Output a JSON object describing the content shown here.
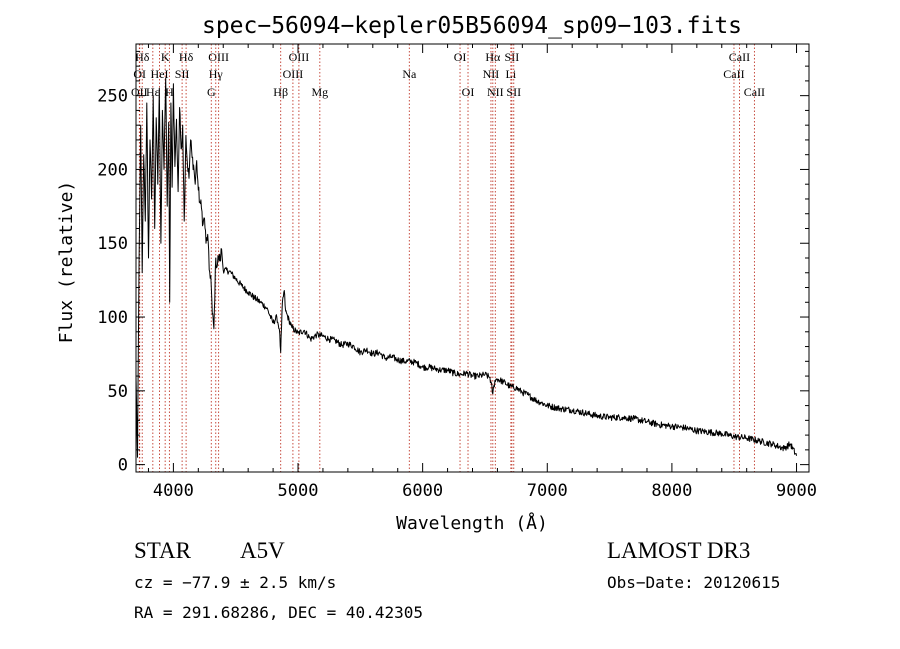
{
  "chart_data": {
    "type": "line",
    "title": "spec−56094−kepler05B56094_sp09−103.fits",
    "xlabel": "Wavelength (Å)",
    "ylabel": "Flux (relative)",
    "xlim": [
      3700,
      9100
    ],
    "ylim": [
      -5,
      285
    ],
    "xticks": [
      4000,
      5000,
      6000,
      7000,
      8000,
      9000
    ],
    "yticks": [
      0,
      50,
      100,
      150,
      200,
      250
    ],
    "xtick_labels": [
      "4000",
      "5000",
      "6000",
      "7000",
      "8000",
      "9000"
    ],
    "ytick_labels": [
      "0",
      "50",
      "100",
      "150",
      "200",
      "250"
    ],
    "series": [
      {
        "name": "flux",
        "x": [
          3700,
          3712,
          3725,
          3738,
          3750,
          3762,
          3775,
          3787,
          3800,
          3812,
          3825,
          3838,
          3850,
          3862,
          3875,
          3887,
          3900,
          3912,
          3925,
          3938,
          3950,
          3962,
          3970,
          3980,
          3990,
          4000,
          4012,
          4025,
          4038,
          4050,
          4062,
          4075,
          4087,
          4100,
          4112,
          4125,
          4138,
          4150,
          4162,
          4175,
          4187,
          4200,
          4212,
          4225,
          4238,
          4250,
          4262,
          4275,
          4287,
          4300,
          4312,
          4325,
          4340,
          4350,
          4362,
          4375,
          4387,
          4400,
          4450,
          4500,
          4550,
          4600,
          4650,
          4700,
          4750,
          4800,
          4830,
          4850,
          4861,
          4875,
          4890,
          4900,
          4950,
          5000,
          5050,
          5100,
          5150,
          5200,
          5250,
          5300,
          5350,
          5400,
          5450,
          5500,
          5550,
          5600,
          5650,
          5700,
          5750,
          5800,
          5850,
          5900,
          5950,
          6000,
          6050,
          6100,
          6150,
          6200,
          6250,
          6300,
          6350,
          6400,
          6450,
          6500,
          6540,
          6563,
          6580,
          6600,
          6650,
          6700,
          6750,
          6800,
          6850,
          6900,
          6950,
          7000,
          7100,
          7200,
          7300,
          7400,
          7500,
          7600,
          7700,
          7800,
          7900,
          8000,
          8100,
          8200,
          8300,
          8400,
          8500,
          8600,
          8700,
          8800,
          8900,
          8950,
          9000
        ],
        "values": [
          60,
          5,
          140,
          230,
          130,
          210,
          165,
          245,
          140,
          220,
          180,
          250,
          160,
          235,
          190,
          255,
          150,
          240,
          200,
          262,
          175,
          232,
          110,
          245,
          188,
          258,
          202,
          234,
          185,
          242,
          214,
          230,
          165,
          223,
          205,
          194,
          220,
          208,
          203,
          190,
          206,
          186,
          178,
          174,
          163,
          167,
          150,
          156,
          132,
          128,
          102,
          92,
          140,
          134,
          141,
          138,
          146,
          132,
          131,
          126,
          121,
          117,
          113,
          110,
          106,
          96,
          100,
          92,
          76,
          110,
          118,
          104,
          93,
          89,
          91,
          85,
          88,
          87,
          85,
          84,
          81,
          82,
          80,
          76,
          78,
          75,
          76,
          72,
          73,
          71,
          70,
          70,
          69,
          66,
          66,
          65,
          64,
          64,
          62,
          61,
          62,
          60,
          60,
          61,
          59,
          48,
          57,
          58,
          56,
          53,
          52,
          49,
          47,
          44,
          42,
          40,
          38,
          37,
          35,
          33,
          32,
          32,
          31,
          29,
          27,
          26,
          25,
          23,
          22,
          21,
          19,
          18,
          16,
          14,
          11,
          14,
          6
        ]
      }
    ],
    "lines": [
      {
        "name": "Hδ",
        "x": 3750,
        "row": 0
      },
      {
        "name": "OI",
        "x": 3730,
        "row": 1
      },
      {
        "name": "OII",
        "x": 3727,
        "row": 2
      },
      {
        "name": "Hε",
        "x": 3835,
        "row": 2
      },
      {
        "name": "HeI",
        "x": 3889,
        "row": 1
      },
      {
        "name": "K",
        "x": 3934,
        "row": 0
      },
      {
        "name": "H",
        "x": 3968,
        "row": 2
      },
      {
        "name": "SII",
        "x": 4070,
        "row": 1
      },
      {
        "name": "Hδ",
        "x": 4102,
        "row": 0
      },
      {
        "name": "OIII",
        "x": 4363,
        "row": 0
      },
      {
        "name": "Hγ",
        "x": 4340,
        "row": 1
      },
      {
        "name": "G",
        "x": 4304,
        "row": 2
      },
      {
        "name": "Hβ",
        "x": 4861,
        "row": 2
      },
      {
        "name": "OIII",
        "x": 4959,
        "row": 1
      },
      {
        "name": "OIII",
        "x": 5007,
        "row": 0
      },
      {
        "name": "Mg",
        "x": 5175,
        "row": 2
      },
      {
        "name": "Na",
        "x": 5893,
        "row": 1
      },
      {
        "name": "OI",
        "x": 6300,
        "row": 0
      },
      {
        "name": "OI",
        "x": 6364,
        "row": 2
      },
      {
        "name": "Hα",
        "x": 6563,
        "row": 0
      },
      {
        "name": "NII",
        "x": 6548,
        "row": 1
      },
      {
        "name": "NII",
        "x": 6583,
        "row": 2
      },
      {
        "name": "SII",
        "x": 6716,
        "row": 0
      },
      {
        "name": "Li",
        "x": 6708,
        "row": 1
      },
      {
        "name": "SII",
        "x": 6731,
        "row": 2
      },
      {
        "name": "CaII",
        "x": 8542,
        "row": 0
      },
      {
        "name": "CaII",
        "x": 8498,
        "row": 1
      },
      {
        "name": "CaII",
        "x": 8662,
        "row": 2
      }
    ]
  },
  "info": {
    "object_type": "STAR",
    "subclass": "A5V",
    "survey": "LAMOST DR3",
    "redshift": "cz = −77.9 ± 2.5 km/s",
    "obs_date": "Obs−Date: 20120615",
    "coords": "RA = 291.68286, DEC =  40.42305"
  }
}
